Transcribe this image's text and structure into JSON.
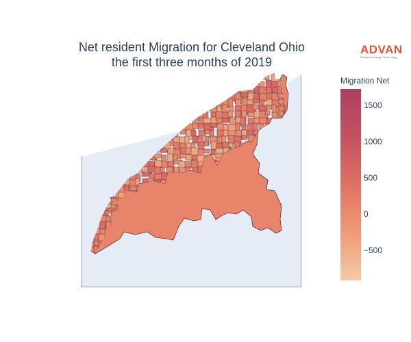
{
  "title": {
    "line1": "Net resident Migration for Cleveland Ohio",
    "line2": "the first three months of 2019"
  },
  "logo": {
    "word": "ADVAN",
    "tagline": "Research through Technology",
    "color": "#e8502f"
  },
  "colorbar": {
    "title": "Migration Net",
    "min": -910,
    "max": 1740,
    "ticks": [
      {
        "label": "1500",
        "value": 1500
      },
      {
        "label": "1000",
        "value": 1000
      },
      {
        "label": "500",
        "value": 500
      },
      {
        "label": "0",
        "value": 0
      },
      {
        "label": "−500",
        "value": -500
      }
    ],
    "colorscale": [
      "#f3cba5",
      "#ef9a78",
      "#e07163",
      "#c5515f",
      "#ac3f65"
    ]
  },
  "map": {
    "background": "#e5ecf6",
    "land": "#ffffff",
    "border_color": "#4a3a45"
  }
}
